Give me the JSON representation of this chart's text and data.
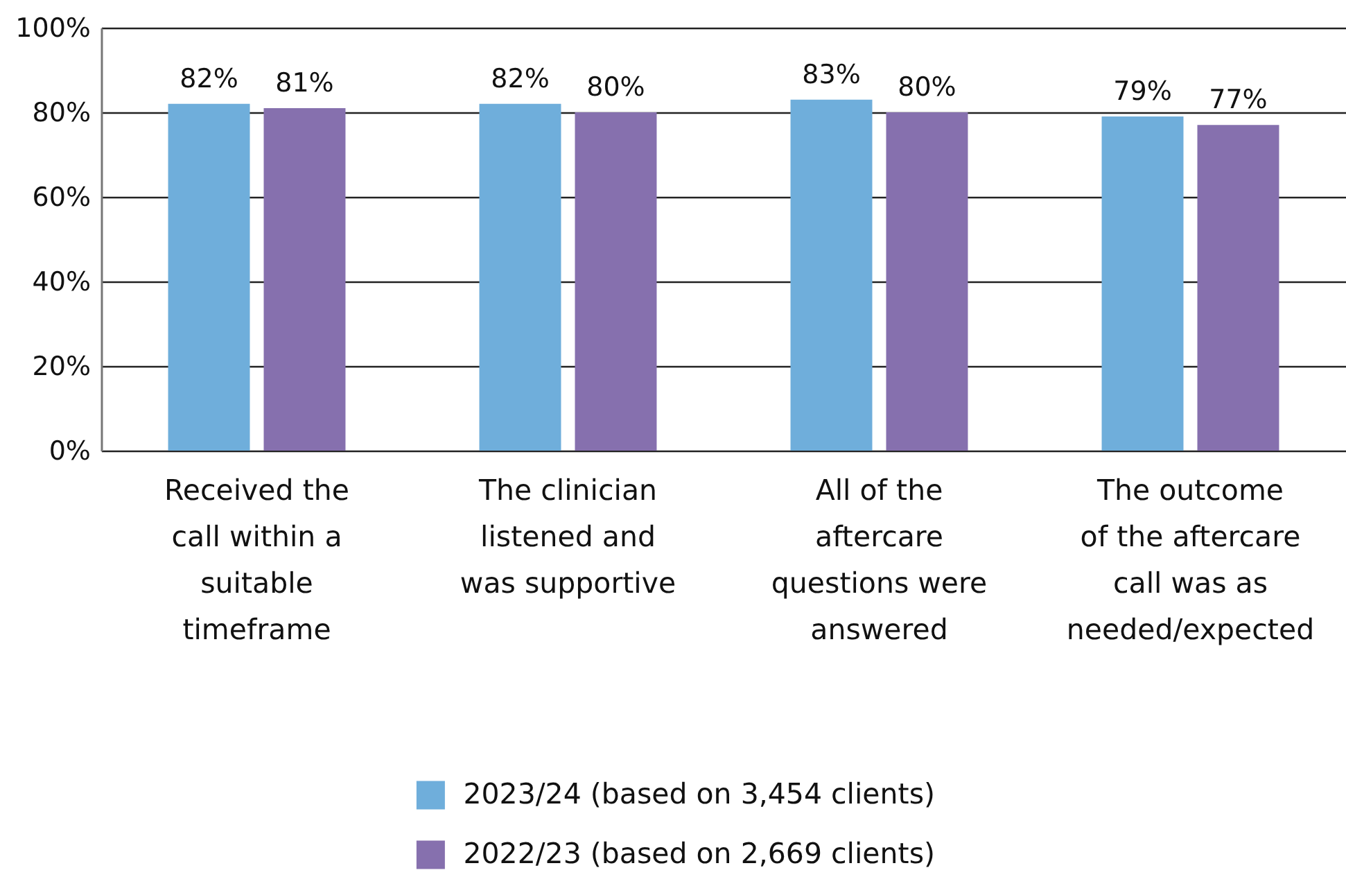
{
  "chart_data": {
    "type": "bar",
    "categories": [
      "Received the call within a suitable timeframe",
      "The clinician listened and was supportive",
      "All of the aftercare questions were answered",
      "The outcome of the aftercare call was as needed/expected"
    ],
    "series": [
      {
        "name": "2023/24 (based on 3,454 clients)",
        "color": "#6faedb",
        "values": [
          82,
          82,
          83,
          79
        ],
        "value_labels": [
          "82%",
          "82%",
          "83%",
          "79%"
        ]
      },
      {
        "name": "2022/23 (based on 2,669 clients)",
        "color": "#8670ae",
        "values": [
          81,
          80,
          80,
          77
        ],
        "value_labels": [
          "81%",
          "80%",
          "80%",
          "77%"
        ]
      }
    ],
    "ylim": [
      0,
      100
    ],
    "yticks": [
      {
        "value": 0,
        "label": "0%"
      },
      {
        "value": 20,
        "label": "20%"
      },
      {
        "value": 40,
        "label": "40%"
      },
      {
        "value": 60,
        "label": "60%"
      },
      {
        "value": 80,
        "label": "80%"
      },
      {
        "value": 100,
        "label": "100%"
      }
    ],
    "grid": "y",
    "legend": "bottom"
  }
}
